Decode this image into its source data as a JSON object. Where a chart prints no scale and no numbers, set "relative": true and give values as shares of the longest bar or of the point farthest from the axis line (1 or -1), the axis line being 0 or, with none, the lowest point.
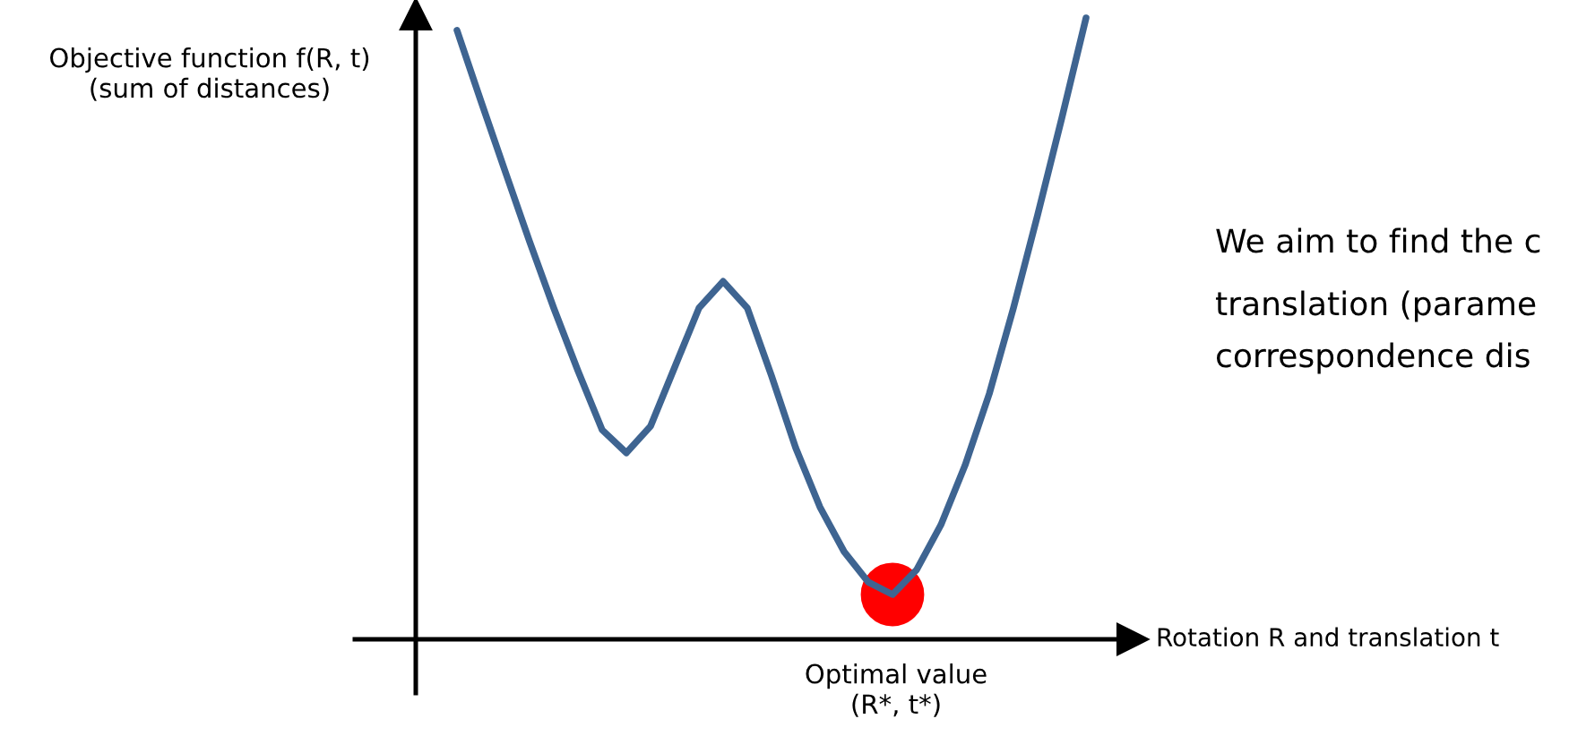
{
  "chart_data": {
    "type": "line",
    "relative": true,
    "ylabel": "Objective function f(R, t)\n(sum of distances)",
    "xlabel": "Rotation R and translation t",
    "categories": [
      null,
      null,
      null,
      null,
      null,
      null,
      null,
      null,
      null,
      null,
      null,
      null,
      null,
      null,
      null,
      null,
      null,
      null,
      null,
      null,
      null,
      null,
      null,
      null,
      null,
      null,
      null
    ],
    "series": [
      {
        "color": "#3e6491",
        "values": [
          0.98,
          0.865,
          0.752,
          0.64,
          0.533,
          0.432,
          0.337,
          0.3,
          0.343,
          0.438,
          0.533,
          0.576,
          0.533,
          0.424,
          0.308,
          0.213,
          0.141,
          0.092,
          0.072,
          0.112,
          0.184,
          0.28,
          0.395,
          0.533,
          0.683,
          0.839,
          1.0
        ]
      }
    ],
    "annotations": [
      "Optimal value\n(R*, t*)",
      "We aim to find the c",
      "translation (parame",
      "correspondence dis"
    ],
    "legend": false
  }
}
